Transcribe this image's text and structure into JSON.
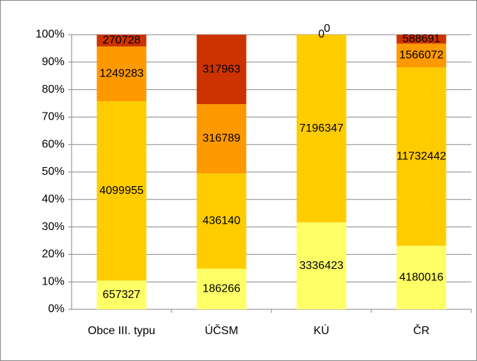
{
  "chart_data": {
    "type": "bar",
    "stacking": "percent",
    "categories": [
      "Obce III. typu",
      "ÚČSM",
      "KÚ",
      "ČR"
    ],
    "series": [
      {
        "color": "#ffff66",
        "values": [
          657327,
          186266,
          3336423,
          4180016
        ]
      },
      {
        "color": "#ffcc00",
        "values": [
          4099955,
          436140,
          7196347,
          11732442
        ]
      },
      {
        "color": "#ff9900",
        "values": [
          1249283,
          316789,
          0,
          1566072
        ]
      },
      {
        "color": "#cc3300",
        "values": [
          270728,
          317963,
          0,
          588691
        ]
      }
    ],
    "ylim": [
      0,
      100
    ],
    "yticks": [
      {
        "value": 0,
        "label": "0%"
      },
      {
        "value": 10,
        "label": "10%"
      },
      {
        "value": 20,
        "label": "20%"
      },
      {
        "value": 30,
        "label": "30%"
      },
      {
        "value": 40,
        "label": "40%"
      },
      {
        "value": 50,
        "label": "50%"
      },
      {
        "value": 60,
        "label": "60%"
      },
      {
        "value": 70,
        "label": "70%"
      },
      {
        "value": 80,
        "label": "80%"
      },
      {
        "value": 90,
        "label": "90%"
      },
      {
        "value": 100,
        "label": "100%"
      }
    ],
    "grid": true
  }
}
